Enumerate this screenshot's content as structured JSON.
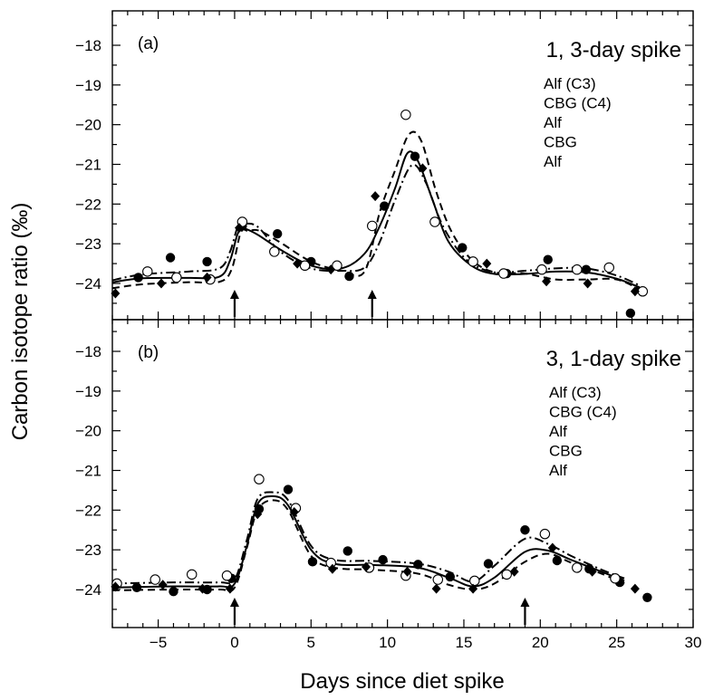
{
  "chart_data": {
    "type": "scatter",
    "xlabel": "Days since diet spike",
    "ylabel": "Carbon isotope ratio (‰)",
    "xlim": [
      -8,
      30
    ],
    "x_ticks": [
      -5,
      0,
      5,
      10,
      15,
      20,
      25,
      30
    ],
    "x_tick_labels": [
      "−5",
      "0",
      "5",
      "10",
      "15",
      "20",
      "25",
      "30"
    ],
    "ylim": [
      -25,
      -17.3
    ],
    "y_ticks": [
      -24,
      -23,
      -22,
      -21,
      -20,
      -19,
      -18
    ],
    "y_tick_labels": [
      "−24",
      "−23",
      "−22",
      "−21",
      "−20",
      "−19",
      "−18"
    ],
    "y_inverted": true,
    "grid": false,
    "panels": [
      {
        "tag": "(a)",
        "title": "1, 3-day spike",
        "legend": [
          "Alf (C3)",
          "CBG (C4)",
          "Alf",
          "CBG",
          "Alf"
        ],
        "arrows_x": [
          0,
          9
        ],
        "series": [
          {
            "marker": "filled-circle",
            "points": [
              [
                -6.3,
                -23.85
              ],
              [
                -4.2,
                -23.35
              ],
              [
                -1.8,
                -23.45
              ],
              [
                0.5,
                -22.55
              ],
              [
                2.8,
                -22.75
              ],
              [
                5,
                -23.45
              ],
              [
                7.5,
                -23.82
              ],
              [
                9.8,
                -22.05
              ],
              [
                11.8,
                -20.8
              ],
              [
                14.9,
                -23.1
              ],
              [
                17.8,
                -23.75
              ],
              [
                20.5,
                -23.4
              ],
              [
                23,
                -23.65
              ],
              [
                25.9,
                -24.75
              ]
            ]
          },
          {
            "marker": "open-circle",
            "points": [
              [
                -5.7,
                -23.7
              ],
              [
                -3.8,
                -23.85
              ],
              [
                -1.6,
                -23.9
              ],
              [
                0.5,
                -22.45
              ],
              [
                2.6,
                -23.2
              ],
              [
                4.6,
                -23.55
              ],
              [
                6.7,
                -23.55
              ],
              [
                9,
                -22.55
              ],
              [
                11.2,
                -19.75
              ],
              [
                13.1,
                -22.45
              ],
              [
                15.6,
                -23.45
              ],
              [
                17.6,
                -23.75
              ],
              [
                20.1,
                -23.65
              ],
              [
                22.4,
                -23.65
              ],
              [
                24.5,
                -23.6
              ],
              [
                26.7,
                -24.2
              ]
            ]
          },
          {
            "marker": "filled-diamond",
            "points": [
              [
                -7.8,
                -24.25
              ],
              [
                -4.8,
                -24
              ],
              [
                -1.8,
                -23.85
              ],
              [
                0.3,
                -22.6
              ],
              [
                4.1,
                -23.5
              ],
              [
                6.3,
                -23.65
              ],
              [
                9.2,
                -21.8
              ],
              [
                12.3,
                -21.1
              ],
              [
                16.5,
                -23.5
              ],
              [
                20.4,
                -23.95
              ],
              [
                23.1,
                -24
              ],
              [
                26.2,
                -24.2
              ]
            ]
          }
        ],
        "curves": [
          {
            "style": "solid",
            "points": [
              [
                -8,
                -23.97
              ],
              [
                -6,
                -23.87
              ],
              [
                -3,
                -23.86
              ],
              [
                -1,
                -23.83
              ],
              [
                -0.3,
                -23.42
              ],
              [
                0.2,
                -22.75
              ],
              [
                0.6,
                -22.62
              ],
              [
                1.5,
                -22.77
              ],
              [
                3,
                -23.15
              ],
              [
                5,
                -23.55
              ],
              [
                7,
                -23.62
              ],
              [
                8.5,
                -23.25
              ],
              [
                9.5,
                -22.55
              ],
              [
                10.5,
                -21.6
              ],
              [
                11.3,
                -20.72
              ],
              [
                12,
                -20.92
              ],
              [
                13,
                -21.95
              ],
              [
                14,
                -22.95
              ],
              [
                15.5,
                -23.55
              ],
              [
                17,
                -23.76
              ],
              [
                19,
                -23.76
              ],
              [
                21,
                -23.7
              ],
              [
                23,
                -23.72
              ],
              [
                25,
                -23.88
              ],
              [
                26.5,
                -24.1
              ]
            ]
          },
          {
            "style": "dashed",
            "points": [
              [
                -8,
                -24.12
              ],
              [
                -6,
                -24.02
              ],
              [
                -3,
                -23.97
              ],
              [
                -1,
                -23.96
              ],
              [
                -0.2,
                -23.65
              ],
              [
                0.4,
                -22.72
              ],
              [
                0.9,
                -22.68
              ],
              [
                1.6,
                -22.67
              ],
              [
                3,
                -22.97
              ],
              [
                5,
                -23.45
              ],
              [
                7,
                -23.68
              ],
              [
                8.5,
                -23.7
              ],
              [
                9.5,
                -22.2
              ],
              [
                10.5,
                -21.15
              ],
              [
                11.4,
                -20.25
              ],
              [
                12.2,
                -20.4
              ],
              [
                13.2,
                -21.7
              ],
              [
                14.2,
                -22.7
              ],
              [
                15.5,
                -23.4
              ],
              [
                17,
                -23.72
              ],
              [
                19,
                -23.75
              ],
              [
                21,
                -23.9
              ],
              [
                23,
                -23.9
              ],
              [
                25,
                -23.9
              ],
              [
                26.5,
                -24.15
              ]
            ]
          },
          {
            "style": "dashdot",
            "points": [
              [
                -8,
                -23.92
              ],
              [
                -6,
                -23.77
              ],
              [
                -3,
                -23.7
              ],
              [
                -1,
                -23.62
              ],
              [
                -0.3,
                -23.2
              ],
              [
                0.2,
                -22.58
              ],
              [
                0.6,
                -22.5
              ],
              [
                1.5,
                -22.57
              ],
              [
                3,
                -23.2
              ],
              [
                5,
                -23.62
              ],
              [
                7,
                -23.68
              ],
              [
                8.5,
                -23.6
              ],
              [
                9.5,
                -22.95
              ],
              [
                10.5,
                -21.9
              ],
              [
                11.6,
                -21.02
              ],
              [
                12.5,
                -21.45
              ],
              [
                13.5,
                -22.45
              ],
              [
                14.5,
                -23.1
              ],
              [
                15.5,
                -23.5
              ],
              [
                17,
                -23.72
              ],
              [
                19,
                -23.68
              ],
              [
                21,
                -23.62
              ],
              [
                23,
                -23.62
              ],
              [
                25,
                -23.8
              ],
              [
                26.5,
                -24.05
              ]
            ]
          }
        ]
      },
      {
        "tag": "(b)",
        "title": "3, 1-day spike",
        "legend": [
          "Alf (C3)",
          "CBG (C4)",
          "Alf",
          "CBG",
          "Alf"
        ],
        "arrows_x": [
          0,
          19
        ],
        "series": [
          {
            "marker": "filled-circle",
            "points": [
              [
                -6.4,
                -23.95
              ],
              [
                -4,
                -24.05
              ],
              [
                -1.8,
                -24
              ],
              [
                -0.2,
                -23.72
              ],
              [
                1.6,
                -21.97
              ],
              [
                3.5,
                -21.48
              ],
              [
                5.1,
                -23.3
              ],
              [
                7.4,
                -23.03
              ],
              [
                9.7,
                -23.25
              ],
              [
                12,
                -23.37
              ],
              [
                14.1,
                -23.68
              ],
              [
                16.6,
                -23.35
              ],
              [
                19,
                -22.5
              ],
              [
                21.1,
                -23.27
              ],
              [
                23.2,
                -23.48
              ],
              [
                25.2,
                -23.82
              ],
              [
                27,
                -24.2
              ]
            ]
          },
          {
            "marker": "open-circle",
            "points": [
              [
                -7.7,
                -23.85
              ],
              [
                -5.2,
                -23.75
              ],
              [
                -2.8,
                -23.62
              ],
              [
                -0.5,
                -23.65
              ],
              [
                1.6,
                -21.22
              ],
              [
                4,
                -21.95
              ],
              [
                6.3,
                -23.33
              ],
              [
                8.8,
                -23.45
              ],
              [
                11.2,
                -23.65
              ],
              [
                13.3,
                -23.75
              ],
              [
                15.7,
                -23.78
              ],
              [
                17.8,
                -23.62
              ],
              [
                20.3,
                -22.6
              ],
              [
                22.4,
                -23.45
              ],
              [
                24.9,
                -23.72
              ]
            ]
          },
          {
            "marker": "filled-diamond",
            "points": [
              [
                -7.8,
                -23.93
              ],
              [
                -4.7,
                -23.88
              ],
              [
                -2.1,
                -23.98
              ],
              [
                -0.3,
                -23.98
              ],
              [
                1.5,
                -22.1
              ],
              [
                3.9,
                -22.05
              ],
              [
                6.4,
                -23.48
              ],
              [
                8.6,
                -23.43
              ],
              [
                11.3,
                -23.55
              ],
              [
                13.2,
                -23.98
              ],
              [
                15.6,
                -23.98
              ],
              [
                18.3,
                -23.55
              ],
              [
                20.8,
                -22.95
              ],
              [
                23.4,
                -23.55
              ],
              [
                26.2,
                -23.98
              ]
            ]
          }
        ],
        "curves": [
          {
            "style": "solid",
            "points": [
              [
                -8,
                -23.95
              ],
              [
                -4,
                -23.92
              ],
              [
                -1,
                -23.92
              ],
              [
                0,
                -23.85
              ],
              [
                0.8,
                -22.9
              ],
              [
                1.5,
                -21.85
              ],
              [
                2.5,
                -21.65
              ],
              [
                3.5,
                -21.88
              ],
              [
                5,
                -23
              ],
              [
                6.5,
                -23.35
              ],
              [
                9,
                -23.38
              ],
              [
                12,
                -23.45
              ],
              [
                14,
                -23.7
              ],
              [
                15.6,
                -23.92
              ],
              [
                17,
                -23.7
              ],
              [
                19,
                -23.05
              ],
              [
                20.5,
                -23.02
              ],
              [
                22,
                -23.25
              ],
              [
                24,
                -23.55
              ],
              [
                25.5,
                -23.78
              ]
            ]
          },
          {
            "style": "dashed",
            "points": [
              [
                -8,
                -24.02
              ],
              [
                -4,
                -24
              ],
              [
                -1,
                -24
              ],
              [
                0,
                -23.95
              ],
              [
                0.8,
                -22.95
              ],
              [
                1.5,
                -22.0
              ],
              [
                2.5,
                -21.75
              ],
              [
                3.5,
                -22.0
              ],
              [
                5,
                -23.15
              ],
              [
                6.5,
                -23.45
              ],
              [
                9,
                -23.5
              ],
              [
                12,
                -23.6
              ],
              [
                14,
                -23.88
              ],
              [
                15.6,
                -24.0
              ],
              [
                17,
                -23.85
              ],
              [
                19,
                -23.3
              ],
              [
                20.5,
                -23.1
              ],
              [
                22,
                -23.32
              ],
              [
                24,
                -23.6
              ],
              [
                25.5,
                -23.85
              ]
            ]
          },
          {
            "style": "dashdot",
            "points": [
              [
                -8,
                -23.85
              ],
              [
                -4,
                -23.82
              ],
              [
                -1,
                -23.82
              ],
              [
                0,
                -23.75
              ],
              [
                0.8,
                -22.75
              ],
              [
                1.5,
                -21.72
              ],
              [
                2.5,
                -21.55
              ],
              [
                3.5,
                -21.75
              ],
              [
                5,
                -22.9
              ],
              [
                6.5,
                -23.25
              ],
              [
                9,
                -23.28
              ],
              [
                12,
                -23.35
              ],
              [
                14,
                -23.55
              ],
              [
                15.6,
                -23.8
              ],
              [
                17,
                -23.4
              ],
              [
                19,
                -22.72
              ],
              [
                20.5,
                -22.85
              ],
              [
                22,
                -23.15
              ],
              [
                24,
                -23.5
              ],
              [
                25.5,
                -23.72
              ]
            ]
          }
        ]
      }
    ]
  }
}
